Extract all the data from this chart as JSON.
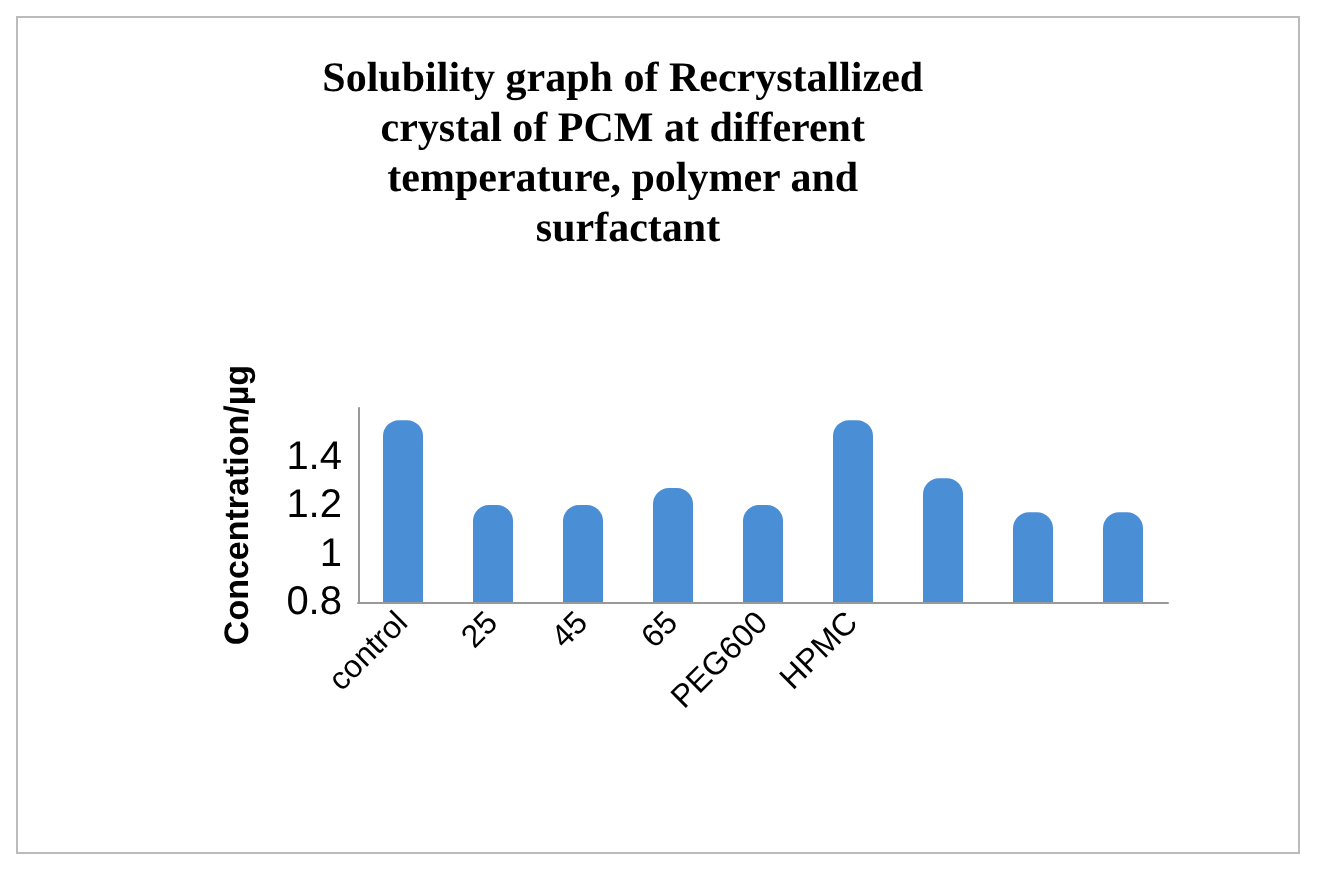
{
  "chart_data": {
    "type": "bar",
    "title": "Solubility graph of Recrystallized crystal of PCM at different temperature, polymer and surfactant",
    "ylabel": "Concentration/µg",
    "categories": [
      "control",
      "25",
      "45",
      "65",
      "PEG600",
      "HPMC",
      null,
      null,
      null
    ],
    "values": [
      1.55,
      1.2,
      1.2,
      1.27,
      1.2,
      1.55,
      1.31,
      1.17,
      1.17
    ],
    "color": "#4a8fd6",
    "ylim": [
      0.8,
      1.6
    ],
    "yticks": [
      0.8,
      1,
      1.2,
      1.4
    ],
    "grid": false
  }
}
